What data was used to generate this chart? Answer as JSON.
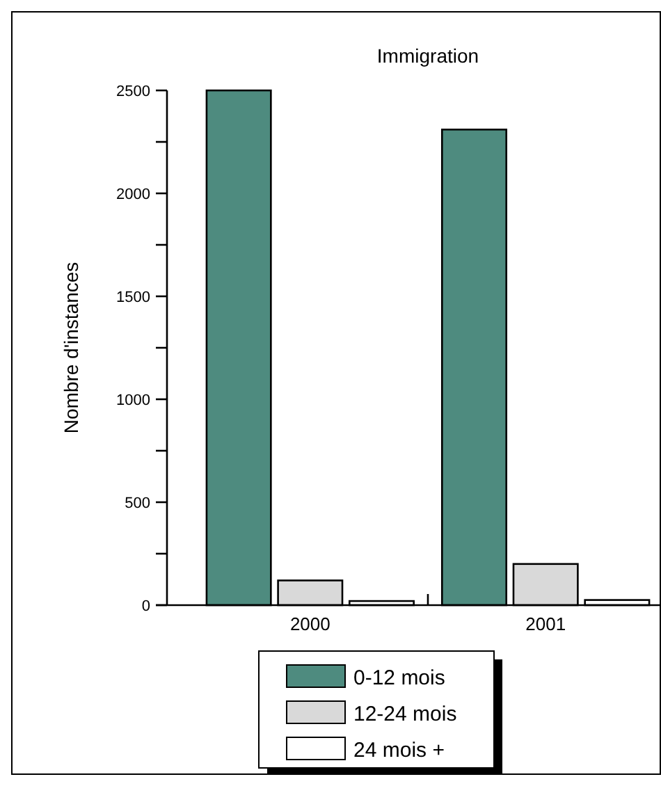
{
  "chart_data": {
    "type": "bar",
    "title": "Immigration",
    "ylabel": "Nombre d'instances",
    "categories": [
      "2000",
      "2001"
    ],
    "series": [
      {
        "name": "0-12 mois",
        "color": "#4e8b7f",
        "values": [
          2500,
          2310
        ]
      },
      {
        "name": "12-24 mois",
        "color": "#d9d9d9",
        "values": [
          120,
          200
        ]
      },
      {
        "name": "24 mois +",
        "color": "#ffffff",
        "values": [
          20,
          25
        ]
      }
    ],
    "ylim": [
      0,
      2500
    ],
    "yticks": [
      0,
      {
        "value": 250,
        "label": null
      },
      500,
      {
        "value": 750,
        "label": null
      },
      1000,
      {
        "value": 1250,
        "label": null
      },
      1500,
      {
        "value": 1750,
        "label": null
      },
      2000,
      {
        "value": 2250,
        "label": null
      },
      2500
    ],
    "grid": false,
    "legend": "bottom"
  }
}
